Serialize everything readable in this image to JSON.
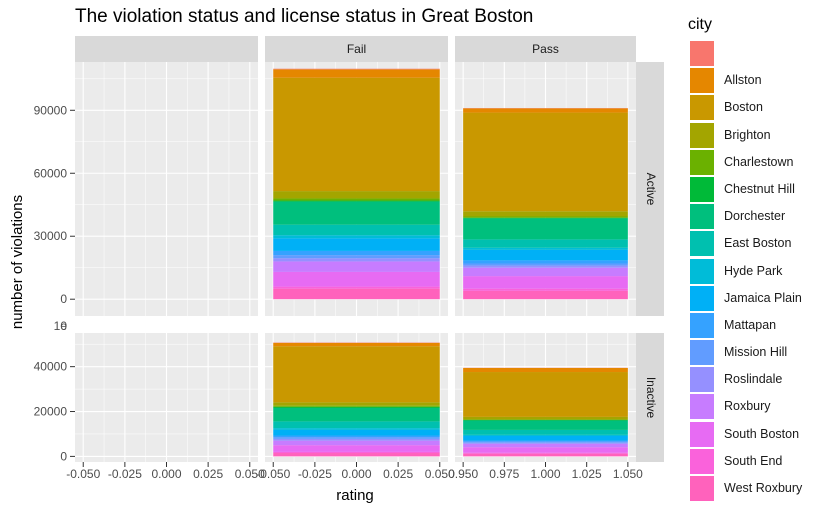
{
  "chart_data": {
    "type": "bar",
    "title": "The violation status and license status in Great Boston",
    "xlabel": "rating",
    "ylabel": "number of violations",
    "facet_columns": [
      "",
      "Fail",
      "Pass"
    ],
    "facet_rows": [
      "Active",
      "Inactive"
    ],
    "legend": {
      "title": "city",
      "position": "right"
    },
    "x_ticks": [
      [
        "-0.050",
        "-0.025",
        "0.000",
        "0.025",
        "0.050"
      ],
      [
        "-0.050",
        "-0.025",
        "0.000",
        "0.025",
        "0.050"
      ],
      [
        "0.950",
        "0.975",
        "1.000",
        "1.025",
        "1.050"
      ]
    ],
    "y_axes": [
      {
        "row": "Active",
        "ylim": [
          -8000,
          113000
        ],
        "ticks": [
          0,
          30000,
          60000,
          90000
        ],
        "tick_labels": [
          "0",
          "30000",
          "60000",
          "90000"
        ]
      },
      {
        "row": "Inactive",
        "ylim": [
          -2500,
          55000
        ],
        "ticks": [
          0,
          20000,
          40000
        ],
        "tick_labels": [
          "0",
          "20000",
          "40000"
        ]
      }
    ],
    "overlap_tick_labels": [
      "1e",
      "0"
    ],
    "series": [
      {
        "name": "",
        "color": "#F8766D",
        "values": {
          "Fail-Active": 300,
          "Pass-Active": 150,
          "Fail-Inactive": 150,
          "Pass-Inactive": 80
        }
      },
      {
        "name": "Allston",
        "color": "#E58700",
        "values": {
          "Fail-Active": 4000,
          "Pass-Active": 2000,
          "Fail-Inactive": 1500,
          "Pass-Inactive": 1800
        }
      },
      {
        "name": "Boston",
        "color": "#C99800",
        "values": {
          "Fail-Active": 54000,
          "Pass-Active": 47000,
          "Fail-Inactive": 25000,
          "Pass-Inactive": 20000
        }
      },
      {
        "name": "Brighton",
        "color": "#A3A500",
        "values": {
          "Fail-Active": 3500,
          "Pass-Active": 2500,
          "Fail-Inactive": 1500,
          "Pass-Inactive": 1100
        }
      },
      {
        "name": "Charlestown",
        "color": "#6BB100",
        "values": {
          "Fail-Active": 1000,
          "Pass-Active": 600,
          "Fail-Inactive": 500,
          "Pass-Inactive": 300
        }
      },
      {
        "name": "Chestnut Hill",
        "color": "#00BA38",
        "values": {
          "Fail-Active": 500,
          "Pass-Active": 300,
          "Fail-Inactive": 500,
          "Pass-Inactive": 200
        }
      },
      {
        "name": "Dorchester",
        "color": "#00BF7D",
        "values": {
          "Fail-Active": 11000,
          "Pass-Active": 10000,
          "Fail-Inactive": 6000,
          "Pass-Inactive": 4200
        }
      },
      {
        "name": "East Boston",
        "color": "#00C0AF",
        "values": {
          "Fail-Active": 5000,
          "Pass-Active": 4000,
          "Fail-Inactive": 3000,
          "Pass-Inactive": 2200
        }
      },
      {
        "name": "Hyde Park",
        "color": "#00BCD8",
        "values": {
          "Fail-Active": 1500,
          "Pass-Active": 1000,
          "Fail-Inactive": 800,
          "Pass-Inactive": 500
        }
      },
      {
        "name": "Jamaica Plain",
        "color": "#00B0F6",
        "values": {
          "Fail-Active": 6000,
          "Pass-Active": 5000,
          "Fail-Inactive": 2500,
          "Pass-Inactive": 2000
        }
      },
      {
        "name": "Mattapan",
        "color": "#35A2FF",
        "values": {
          "Fail-Active": 2000,
          "Pass-Active": 1500,
          "Fail-Inactive": 700,
          "Pass-Inactive": 500
        }
      },
      {
        "name": "Mission Hill",
        "color": "#619CFF",
        "values": {
          "Fail-Active": 1500,
          "Pass-Active": 1000,
          "Fail-Inactive": 800,
          "Pass-Inactive": 500
        }
      },
      {
        "name": "Roslindale",
        "color": "#9590FF",
        "values": {
          "Fail-Active": 1500,
          "Pass-Active": 1000,
          "Fail-Inactive": 800,
          "Pass-Inactive": 500
        }
      },
      {
        "name": "Roxbury",
        "color": "#C77CFF",
        "values": {
          "Fail-Active": 5000,
          "Pass-Active": 4000,
          "Fail-Inactive": 2000,
          "Pass-Inactive": 1500
        }
      },
      {
        "name": "South Boston",
        "color": "#E76BF3",
        "values": {
          "Fail-Active": 7000,
          "Pass-Active": 6000,
          "Fail-Inactive": 3000,
          "Pass-Inactive": 2500
        }
      },
      {
        "name": "South End",
        "color": "#FA62DB",
        "values": {
          "Fail-Active": 1000,
          "Pass-Active": 1000,
          "Fail-Inactive": 500,
          "Pass-Inactive": 400
        }
      },
      {
        "name": "West Roxbury",
        "color": "#FF62BC",
        "values": {
          "Fail-Active": 5000,
          "Pass-Active": 4000,
          "Fail-Inactive": 1500,
          "Pass-Inactive": 1200
        }
      }
    ]
  }
}
